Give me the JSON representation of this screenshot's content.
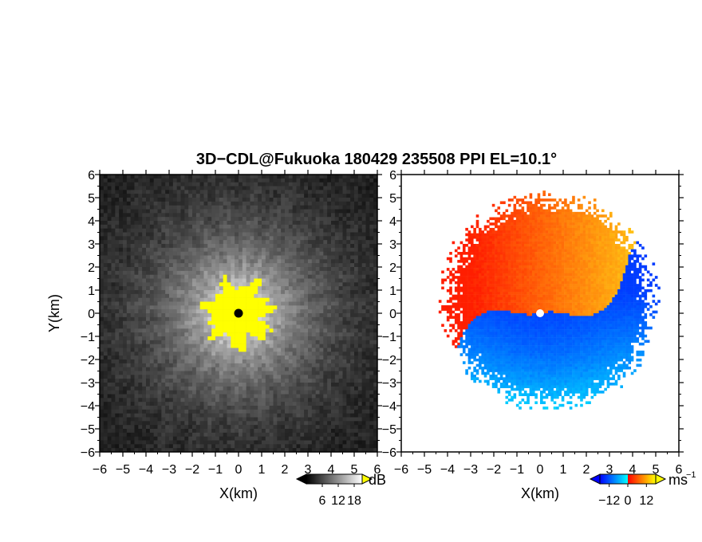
{
  "title": "3D−CDL@Fukuoka 180429 235508 PPI EL=10.1°",
  "chart_data": [
    {
      "type": "heatmap",
      "panel": "left",
      "quantity": "backscatter intensity",
      "xlabel": "X(km)",
      "ylabel": "Y(km)",
      "xlim": [
        -6,
        6
      ],
      "ylim": [
        -6,
        6
      ],
      "xticks": [
        "−6",
        "−5",
        "−4",
        "−3",
        "−2",
        "−1",
        "0",
        "1",
        "2",
        "3",
        "4",
        "5",
        "6"
      ],
      "yticks": [
        "−6",
        "−5",
        "−4",
        "−3",
        "−2",
        "−1",
        "0",
        "1",
        "2",
        "3",
        "4",
        "5",
        "6"
      ],
      "colorbar": {
        "unit": "dB",
        "ticks": [
          "6",
          "12",
          "18"
        ],
        "tick_values": [
          6,
          12,
          18
        ],
        "range": [
          0,
          21
        ],
        "colors": [
          "#000000",
          "#ffffff"
        ],
        "over_color": "#ffff00"
      },
      "saturated_region_radius_km": 1.3,
      "radar_site": [
        0,
        0
      ]
    },
    {
      "type": "heatmap",
      "panel": "right",
      "quantity": "radial velocity",
      "xlabel": "X(km)",
      "ylabel": "",
      "xlim": [
        -6,
        6
      ],
      "ylim": [
        -6,
        6
      ],
      "xticks": [
        "−6",
        "−5",
        "−4",
        "−3",
        "−2",
        "−1",
        "0",
        "1",
        "2",
        "3",
        "4",
        "5",
        "6"
      ],
      "yticks": [
        "−6",
        "−5",
        "−4",
        "−3",
        "−2",
        "−1",
        "0",
        "1",
        "2",
        "3",
        "4",
        "5",
        "6"
      ],
      "colorbar": {
        "unit": "ms",
        "unit_exponent": "−1",
        "ticks": [
          "−12",
          "0",
          "12"
        ],
        "tick_values": [
          -12,
          0,
          12
        ],
        "range": [
          -18,
          18
        ],
        "colors": [
          "#0000ff",
          "#00ffff",
          "#ff0000",
          "#ffff00"
        ]
      },
      "coverage_radius_km": 5.5,
      "radar_site": [
        0,
        0
      ]
    }
  ]
}
